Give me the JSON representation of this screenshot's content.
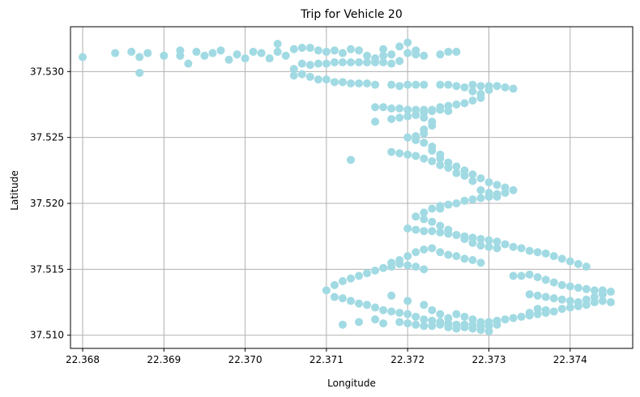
{
  "chart_data": {
    "type": "scatter",
    "title": "Trip for Vehicle 20",
    "xlabel": "Longitude",
    "ylabel": "Latitude",
    "xlim": [
      22.36785,
      22.37477
    ],
    "ylim": [
      37.509,
      37.5334
    ],
    "xticks": [
      "22.368",
      "22.369",
      "22.370",
      "22.371",
      "22.372",
      "22.373",
      "22.374"
    ],
    "xtick_values": [
      22.368,
      22.369,
      22.37,
      22.371,
      22.372,
      22.373,
      22.374
    ],
    "yticks": [
      "37.510",
      "37.515",
      "37.520",
      "37.525",
      "37.530"
    ],
    "ytick_values": [
      37.51,
      37.515,
      37.52,
      37.525,
      37.53
    ],
    "grid": true,
    "marker_color": "#a1dae3",
    "points": [
      [
        22.368,
        37.5311
      ],
      [
        22.3684,
        37.5314
      ],
      [
        22.3686,
        37.5315
      ],
      [
        22.3687,
        37.5311
      ],
      [
        22.3687,
        37.5299
      ],
      [
        22.3688,
        37.5314
      ],
      [
        22.369,
        37.5312
      ],
      [
        22.3692,
        37.5316
      ],
      [
        22.3692,
        37.5312
      ],
      [
        22.3693,
        37.5306
      ],
      [
        22.3694,
        37.5315
      ],
      [
        22.3695,
        37.5312
      ],
      [
        22.3696,
        37.5314
      ],
      [
        22.3697,
        37.5316
      ],
      [
        22.3698,
        37.5309
      ],
      [
        22.3699,
        37.5313
      ],
      [
        22.37,
        37.531
      ],
      [
        22.3701,
        37.5315
      ],
      [
        22.3702,
        37.5314
      ],
      [
        22.3703,
        37.531
      ],
      [
        22.3704,
        37.5315
      ],
      [
        22.3704,
        37.5321
      ],
      [
        22.3705,
        37.5312
      ],
      [
        22.3706,
        37.5317
      ],
      [
        22.3707,
        37.5318
      ],
      [
        22.3708,
        37.5318
      ],
      [
        22.3709,
        37.5316
      ],
      [
        22.371,
        37.5315
      ],
      [
        22.3711,
        37.5316
      ],
      [
        22.3712,
        37.5314
      ],
      [
        22.3713,
        37.5317
      ],
      [
        22.3714,
        37.5316
      ],
      [
        22.3715,
        37.5312
      ],
      [
        22.3716,
        37.531
      ],
      [
        22.3717,
        37.5312
      ],
      [
        22.3717,
        37.5317
      ],
      [
        22.3718,
        37.5313
      ],
      [
        22.3719,
        37.5319
      ],
      [
        22.3719,
        37.5308
      ],
      [
        22.372,
        37.5322
      ],
      [
        22.372,
        37.5314
      ],
      [
        22.3721,
        37.5313
      ],
      [
        22.3721,
        37.5316
      ],
      [
        22.3722,
        37.5312
      ],
      [
        22.3724,
        37.5313
      ],
      [
        22.3725,
        37.5315
      ],
      [
        22.3726,
        37.5315
      ],
      [
        22.3707,
        37.5306
      ],
      [
        22.3708,
        37.5305
      ],
      [
        22.3709,
        37.5306
      ],
      [
        22.371,
        37.5306
      ],
      [
        22.3711,
        37.5307
      ],
      [
        22.3712,
        37.5307
      ],
      [
        22.3713,
        37.5307
      ],
      [
        22.3714,
        37.5307
      ],
      [
        22.3715,
        37.5307
      ],
      [
        22.3716,
        37.5307
      ],
      [
        22.3717,
        37.5307
      ],
      [
        22.3718,
        37.5306
      ],
      [
        22.3706,
        37.5302
      ],
      [
        22.3706,
        37.5297
      ],
      [
        22.3707,
        37.5298
      ],
      [
        22.3708,
        37.5296
      ],
      [
        22.3709,
        37.5294
      ],
      [
        22.371,
        37.5294
      ],
      [
        22.3711,
        37.5292
      ],
      [
        22.3712,
        37.5292
      ],
      [
        22.3713,
        37.5291
      ],
      [
        22.3714,
        37.5291
      ],
      [
        22.3715,
        37.5291
      ],
      [
        22.3716,
        37.529
      ],
      [
        22.3718,
        37.529
      ],
      [
        22.3719,
        37.5289
      ],
      [
        22.372,
        37.529
      ],
      [
        22.3721,
        37.529
      ],
      [
        22.3722,
        37.529
      ],
      [
        22.3724,
        37.529
      ],
      [
        22.3725,
        37.529
      ],
      [
        22.3726,
        37.5289
      ],
      [
        22.3727,
        37.5288
      ],
      [
        22.3728,
        37.529
      ],
      [
        22.3729,
        37.5289
      ],
      [
        22.373,
        37.5289
      ],
      [
        22.3731,
        37.5289
      ],
      [
        22.3732,
        37.5288
      ],
      [
        22.3733,
        37.5287
      ],
      [
        22.3728,
        37.5285
      ],
      [
        22.3729,
        37.5283
      ],
      [
        22.373,
        37.5286
      ],
      [
        22.3729,
        37.528
      ],
      [
        22.3728,
        37.5278
      ],
      [
        22.3727,
        37.5276
      ],
      [
        22.3726,
        37.5275
      ],
      [
        22.3725,
        37.5274
      ],
      [
        22.3724,
        37.5273
      ],
      [
        22.3723,
        37.5271
      ],
      [
        22.3722,
        37.5269
      ],
      [
        22.3721,
        37.5267
      ],
      [
        22.372,
        37.5266
      ],
      [
        22.3719,
        37.5265
      ],
      [
        22.3718,
        37.5264
      ],
      [
        22.3716,
        37.5262
      ],
      [
        22.3716,
        37.5273
      ],
      [
        22.3717,
        37.5273
      ],
      [
        22.3718,
        37.5272
      ],
      [
        22.3719,
        37.5272
      ],
      [
        22.372,
        37.5271
      ],
      [
        22.3721,
        37.5271
      ],
      [
        22.3722,
        37.5271
      ],
      [
        22.3723,
        37.527
      ],
      [
        22.3724,
        37.5271
      ],
      [
        22.3725,
        37.527
      ],
      [
        22.3722,
        37.5265
      ],
      [
        22.3723,
        37.5262
      ],
      [
        22.3723,
        37.5259
      ],
      [
        22.3722,
        37.5256
      ],
      [
        22.3722,
        37.5253
      ],
      [
        22.3721,
        37.5251
      ],
      [
        22.372,
        37.525
      ],
      [
        22.3721,
        37.5248
      ],
      [
        22.3722,
        37.5246
      ],
      [
        22.3723,
        37.5243
      ],
      [
        22.3723,
        37.524
      ],
      [
        22.3724,
        37.5237
      ],
      [
        22.3724,
        37.5234
      ],
      [
        22.3725,
        37.5231
      ],
      [
        22.3726,
        37.5228
      ],
      [
        22.3727,
        37.5225
      ],
      [
        22.3728,
        37.5222
      ],
      [
        22.3729,
        37.5219
      ],
      [
        22.373,
        37.5216
      ],
      [
        22.3731,
        37.5214
      ],
      [
        22.3732,
        37.5212
      ],
      [
        22.3733,
        37.521
      ],
      [
        22.3732,
        37.5208
      ],
      [
        22.3731,
        37.5207
      ],
      [
        22.373,
        37.5205
      ],
      [
        22.3729,
        37.5204
      ],
      [
        22.3728,
        37.5203
      ],
      [
        22.3727,
        37.5202
      ],
      [
        22.3726,
        37.52
      ],
      [
        22.3725,
        37.5199
      ],
      [
        22.3724,
        37.5198
      ],
      [
        22.3723,
        37.5196
      ],
      [
        22.3722,
        37.5193
      ],
      [
        22.3721,
        37.519
      ],
      [
        22.372,
        37.5181
      ],
      [
        22.3721,
        37.518
      ],
      [
        22.3722,
        37.5179
      ],
      [
        22.3723,
        37.5179
      ],
      [
        22.3724,
        37.5178
      ],
      [
        22.3725,
        37.5177
      ],
      [
        22.3726,
        37.5176
      ],
      [
        22.3727,
        37.5175
      ],
      [
        22.3728,
        37.5174
      ],
      [
        22.3729,
        37.5173
      ],
      [
        22.373,
        37.5172
      ],
      [
        22.3731,
        37.5171
      ],
      [
        22.3732,
        37.5169
      ],
      [
        22.3733,
        37.5167
      ],
      [
        22.3734,
        37.5166
      ],
      [
        22.3735,
        37.5164
      ],
      [
        22.3736,
        37.5163
      ],
      [
        22.3737,
        37.5162
      ],
      [
        22.3738,
        37.516
      ],
      [
        22.3739,
        37.5158
      ],
      [
        22.374,
        37.5156
      ],
      [
        22.3741,
        37.5154
      ],
      [
        22.3742,
        37.5152
      ],
      [
        22.3713,
        37.5233
      ],
      [
        22.3718,
        37.5239
      ],
      [
        22.3719,
        37.5238
      ],
      [
        22.372,
        37.5237
      ],
      [
        22.3721,
        37.5236
      ],
      [
        22.3722,
        37.5234
      ],
      [
        22.3723,
        37.5232
      ],
      [
        22.3724,
        37.5229
      ],
      [
        22.3725,
        37.5227
      ],
      [
        22.3726,
        37.5223
      ],
      [
        22.3727,
        37.5221
      ],
      [
        22.3728,
        37.5217
      ],
      [
        22.3729,
        37.521
      ],
      [
        22.373,
        37.5208
      ],
      [
        22.3731,
        37.5205
      ],
      [
        22.3725,
        37.5199
      ],
      [
        22.3724,
        37.5196
      ],
      [
        22.3722,
        37.5188
      ],
      [
        22.3723,
        37.5186
      ],
      [
        22.3724,
        37.5183
      ],
      [
        22.3725,
        37.518
      ],
      [
        22.3726,
        37.5176
      ],
      [
        22.3727,
        37.5173
      ],
      [
        22.3728,
        37.517
      ],
      [
        22.3729,
        37.5168
      ],
      [
        22.373,
        37.5167
      ],
      [
        22.3731,
        37.5166
      ],
      [
        22.3718,
        37.5155
      ],
      [
        22.3719,
        37.5157
      ],
      [
        22.372,
        37.516
      ],
      [
        22.3721,
        37.5163
      ],
      [
        22.3722,
        37.5165
      ],
      [
        22.3723,
        37.5166
      ],
      [
        22.3724,
        37.5163
      ],
      [
        22.3725,
        37.5161
      ],
      [
        22.3726,
        37.516
      ],
      [
        22.3727,
        37.5158
      ],
      [
        22.3728,
        37.5157
      ],
      [
        22.3729,
        37.5155
      ],
      [
        22.371,
        37.5134
      ],
      [
        22.3711,
        37.5138
      ],
      [
        22.3712,
        37.5141
      ],
      [
        22.3713,
        37.5143
      ],
      [
        22.3714,
        37.5145
      ],
      [
        22.3715,
        37.5147
      ],
      [
        22.3716,
        37.5149
      ],
      [
        22.3717,
        37.5151
      ],
      [
        22.3718,
        37.5152
      ],
      [
        22.3719,
        37.5154
      ],
      [
        22.372,
        37.5153
      ],
      [
        22.3721,
        37.5152
      ],
      [
        22.3722,
        37.515
      ],
      [
        22.3711,
        37.5129
      ],
      [
        22.3712,
        37.5128
      ],
      [
        22.3713,
        37.5126
      ],
      [
        22.3714,
        37.5124
      ],
      [
        22.3715,
        37.5123
      ],
      [
        22.3716,
        37.5121
      ],
      [
        22.3717,
        37.5119
      ],
      [
        22.3718,
        37.5118
      ],
      [
        22.3719,
        37.5117
      ],
      [
        22.372,
        37.5116
      ],
      [
        22.3721,
        37.5114
      ],
      [
        22.3722,
        37.5112
      ],
      [
        22.3723,
        37.5111
      ],
      [
        22.3724,
        37.511
      ],
      [
        22.3725,
        37.5109
      ],
      [
        22.3726,
        37.5108
      ],
      [
        22.3727,
        37.5108
      ],
      [
        22.3728,
        37.5108
      ],
      [
        22.3729,
        37.5107
      ],
      [
        22.373,
        37.5107
      ],
      [
        22.3731,
        37.5108
      ],
      [
        22.3712,
        37.5108
      ],
      [
        22.3714,
        37.511
      ],
      [
        22.3716,
        37.5112
      ],
      [
        22.3717,
        37.5109
      ],
      [
        22.3719,
        37.511
      ],
      [
        22.372,
        37.5109
      ],
      [
        22.3721,
        37.5108
      ],
      [
        22.3722,
        37.5107
      ],
      [
        22.3723,
        37.5107
      ],
      [
        22.3724,
        37.5108
      ],
      [
        22.3725,
        37.5106
      ],
      [
        22.3726,
        37.5105
      ],
      [
        22.3727,
        37.5106
      ],
      [
        22.3728,
        37.5105
      ],
      [
        22.3729,
        37.5104
      ],
      [
        22.373,
        37.5103
      ],
      [
        22.3718,
        37.513
      ],
      [
        22.372,
        37.5126
      ],
      [
        22.3722,
        37.5123
      ],
      [
        22.3723,
        37.5119
      ],
      [
        22.3724,
        37.5116
      ],
      [
        22.3725,
        37.5113
      ],
      [
        22.3726,
        37.5116
      ],
      [
        22.3727,
        37.5114
      ],
      [
        22.3728,
        37.5112
      ],
      [
        22.3729,
        37.511
      ],
      [
        22.373,
        37.511
      ],
      [
        22.3731,
        37.5111
      ],
      [
        22.3732,
        37.5112
      ],
      [
        22.3733,
        37.5113
      ],
      [
        22.3734,
        37.5114
      ],
      [
        22.3735,
        37.5115
      ],
      [
        22.3736,
        37.5116
      ],
      [
        22.3737,
        37.5117
      ],
      [
        22.3738,
        37.5118
      ],
      [
        22.3739,
        37.512
      ],
      [
        22.374,
        37.5121
      ],
      [
        22.3741,
        37.5122
      ],
      [
        22.3742,
        37.5123
      ],
      [
        22.3743,
        37.5125
      ],
      [
        22.3744,
        37.5126
      ],
      [
        22.3745,
        37.5125
      ],
      [
        22.3733,
        37.5145
      ],
      [
        22.3734,
        37.5145
      ],
      [
        22.3735,
        37.5146
      ],
      [
        22.3736,
        37.5144
      ],
      [
        22.3737,
        37.5142
      ],
      [
        22.3738,
        37.514
      ],
      [
        22.3739,
        37.5138
      ],
      [
        22.374,
        37.5137
      ],
      [
        22.3741,
        37.5136
      ],
      [
        22.3742,
        37.5135
      ],
      [
        22.3743,
        37.5134
      ],
      [
        22.3744,
        37.5134
      ],
      [
        22.3745,
        37.5133
      ],
      [
        22.3735,
        37.5131
      ],
      [
        22.3736,
        37.513
      ],
      [
        22.3737,
        37.5129
      ],
      [
        22.3738,
        37.5128
      ],
      [
        22.3739,
        37.5127
      ],
      [
        22.374,
        37.5126
      ],
      [
        22.3741,
        37.5125
      ],
      [
        22.3742,
        37.5127
      ],
      [
        22.3743,
        37.5129
      ],
      [
        22.3744,
        37.5131
      ],
      [
        22.3736,
        37.512
      ],
      [
        22.3737,
        37.5119
      ],
      [
        22.3735,
        37.5117
      ]
    ]
  }
}
